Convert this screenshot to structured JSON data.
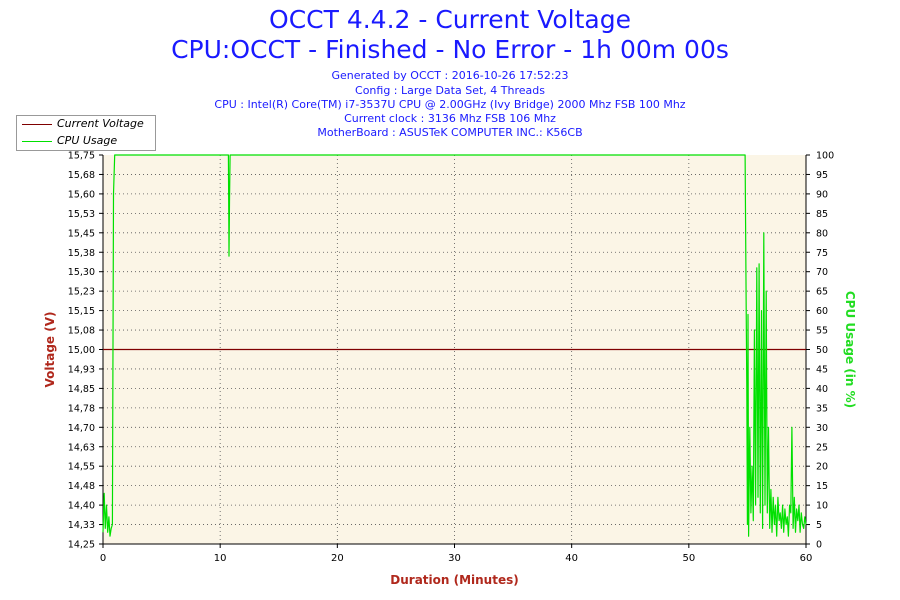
{
  "header": {
    "title": "OCCT 4.4.2 - Current Voltage",
    "subtitle": "CPU:OCCT - Finished - No Error - 1h 00m 00s",
    "info_lines": [
      "Generated by OCCT : 2016-10-26 17:52:23",
      "Config : Large Data Set, 4 Threads",
      "CPU : Intel(R) Core(TM) i7-3537U CPU @ 2.00GHz (Ivy Bridge) 2000 Mhz FSB 100 Mhz",
      "Current clock : 3136 Mhz FSB 106 Mhz",
      "MotherBoard : ASUSTeK COMPUTER INC.: K56CB"
    ]
  },
  "legend": {
    "items": [
      {
        "label": "Current Voltage",
        "color": "#7f0000"
      },
      {
        "label": "CPU Usage",
        "color": "#00e000"
      }
    ]
  },
  "colors": {
    "plot_bg": "#fbf5e6",
    "grid": "#555555",
    "voltage_line": "#7f0000",
    "cpu_line": "#00e000",
    "axis_label_left": "#b0281c",
    "axis_label_right": "#22dd22",
    "xlabel_color": "#b0281c"
  },
  "chart_data": {
    "type": "line",
    "xlabel": "Duration (Minutes)",
    "ylabel": "Voltage (V)",
    "y2label": "CPU Usage (in %)",
    "xlim": [
      0,
      60
    ],
    "ylim": [
      14.25,
      15.75
    ],
    "y2lim": [
      0,
      100
    ],
    "x_ticks": [
      "0",
      "10",
      "20",
      "30",
      "40",
      "50",
      "60"
    ],
    "y_ticks": [
      "14,25",
      "14,33",
      "14,40",
      "14,48",
      "14,55",
      "14,63",
      "14,70",
      "14,78",
      "14,85",
      "14,93",
      "15,00",
      "15,08",
      "15,15",
      "15,23",
      "15,30",
      "15,38",
      "15,45",
      "15,53",
      "15,60",
      "15,68",
      "15,75"
    ],
    "y2_ticks": [
      "0",
      "5",
      "10",
      "15",
      "20",
      "25",
      "30",
      "35",
      "40",
      "45",
      "50",
      "55",
      "60",
      "65",
      "70",
      "75",
      "80",
      "85",
      "90",
      "95",
      "100"
    ],
    "grid": true,
    "legend_position": "top-left",
    "series": [
      {
        "name": "Current Voltage",
        "axis": "left",
        "x": [
          0,
          60
        ],
        "values": [
          15.0,
          15.0
        ]
      },
      {
        "name": "CPU Usage",
        "axis": "right",
        "x": [
          0,
          0.1,
          0.2,
          0.3,
          0.4,
          0.5,
          0.6,
          0.7,
          0.8,
          0.9,
          1.0,
          1.1,
          1.2,
          10.7,
          10.75,
          10.8,
          10.85,
          10.9,
          11.0,
          54.8,
          54.9,
          54.95,
          55.0,
          55.05,
          55.1,
          55.2,
          55.3,
          55.4,
          55.5,
          55.6,
          55.7,
          55.8,
          55.9,
          56.0,
          56.1,
          56.2,
          56.3,
          56.4,
          56.5,
          56.6,
          56.7,
          56.8,
          56.9,
          57.0,
          57.1,
          57.2,
          57.3,
          57.4,
          57.5,
          57.6,
          57.7,
          57.8,
          57.9,
          58.0,
          58.1,
          58.2,
          58.3,
          58.4,
          58.5,
          58.6,
          58.7,
          58.8,
          58.9,
          59.0,
          59.1,
          59.2,
          59.3,
          59.4,
          59.5,
          59.6,
          59.7,
          59.8,
          59.9,
          60.0
        ],
        "values": [
          3,
          13,
          4,
          10,
          3,
          7,
          2,
          4,
          5,
          90,
          100,
          100,
          100,
          100,
          74,
          88,
          100,
          100,
          100,
          100,
          60,
          40,
          5,
          59,
          2,
          30,
          8,
          20,
          6,
          55,
          10,
          71,
          12,
          72,
          8,
          60,
          4,
          80,
          10,
          65,
          8,
          30,
          4,
          14,
          3,
          12,
          5,
          10,
          2,
          12,
          6,
          8,
          4,
          10,
          3,
          9,
          5,
          7,
          2,
          10,
          8,
          30,
          4,
          12,
          3,
          9,
          6,
          10,
          3,
          8,
          5,
          4,
          7,
          5
        ]
      }
    ]
  }
}
